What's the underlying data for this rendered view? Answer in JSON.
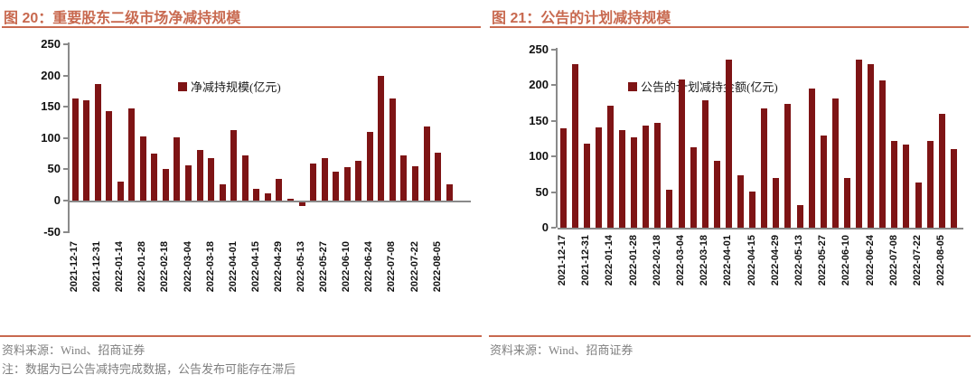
{
  "accent_color": "#C8694F",
  "bar_color": "#7E1415",
  "axis_color": "#8a8a8a",
  "panels": [
    {
      "title": "图 20：重要股东二级市场净减持规模",
      "legend_label": "净减持规模(亿元)",
      "source": "资料来源：Wind、招商证券",
      "note": "注：数据为已公告减持完成数据，公告发布可能存在滞后"
    },
    {
      "title": "图 21：公告的计划减持规模",
      "legend_label": "公告的计划减持金额(亿元)",
      "source": "资料来源：Wind、招商证券",
      "note": ""
    }
  ],
  "chart_data": [
    {
      "type": "bar",
      "title": "图 20：重要股东二级市场净减持规模",
      "legend": [
        "净减持规模(亿元)"
      ],
      "ylabel": "亿元",
      "ylim": [
        -50,
        250
      ],
      "yticks": [
        250,
        200,
        150,
        100,
        50,
        0,
        -50
      ],
      "grid": false,
      "legend_position": "top-center",
      "label_every_n_bars": 2,
      "x_tick_labels": [
        "2021-12-17",
        "2021-12-31",
        "2022-01-14",
        "2022-01-28",
        "2022-02-18",
        "2022-03-04",
        "2022-03-18",
        "2022-04-01",
        "2022-04-15",
        "2022-04-29",
        "2022-05-13",
        "2022-05-27",
        "2022-06-10",
        "2022-06-24",
        "2022-07-08",
        "2022-07-22",
        "2022-08-05"
      ],
      "values": [
        164,
        160,
        186,
        143,
        31,
        147,
        103,
        75,
        51,
        101,
        57,
        81,
        68,
        26,
        112,
        72,
        19,
        11,
        35,
        3,
        -6,
        59,
        68,
        46,
        53,
        64,
        110,
        200,
        164,
        72,
        55,
        119,
        77,
        26
      ]
    },
    {
      "type": "bar",
      "title": "图 21：公告的计划减持规模",
      "legend": [
        "公告的计划减持金额(亿元)"
      ],
      "ylabel": "亿元",
      "ylim": [
        0,
        250
      ],
      "yticks": [
        250,
        200,
        150,
        100,
        50,
        0
      ],
      "grid": false,
      "legend_position": "top-center",
      "label_every_n_bars": 2,
      "x_tick_labels": [
        "2021-12-17",
        "2021-12-31",
        "2022-01-14",
        "2022-01-28",
        "2022-02-18",
        "2022-03-04",
        "2022-03-18",
        "2022-04-01",
        "2022-04-15",
        "2022-04-29",
        "2022-05-13",
        "2022-05-27",
        "2022-06-10",
        "2022-06-24",
        "2022-07-08",
        "2022-07-22",
        "2022-08-05"
      ],
      "values": [
        139,
        230,
        118,
        141,
        171,
        137,
        127,
        144,
        147,
        53,
        208,
        113,
        179,
        94,
        236,
        73,
        51,
        168,
        70,
        174,
        32,
        195,
        130,
        181,
        70,
        236,
        230,
        207,
        122,
        117,
        63,
        122,
        160,
        111
      ]
    }
  ]
}
